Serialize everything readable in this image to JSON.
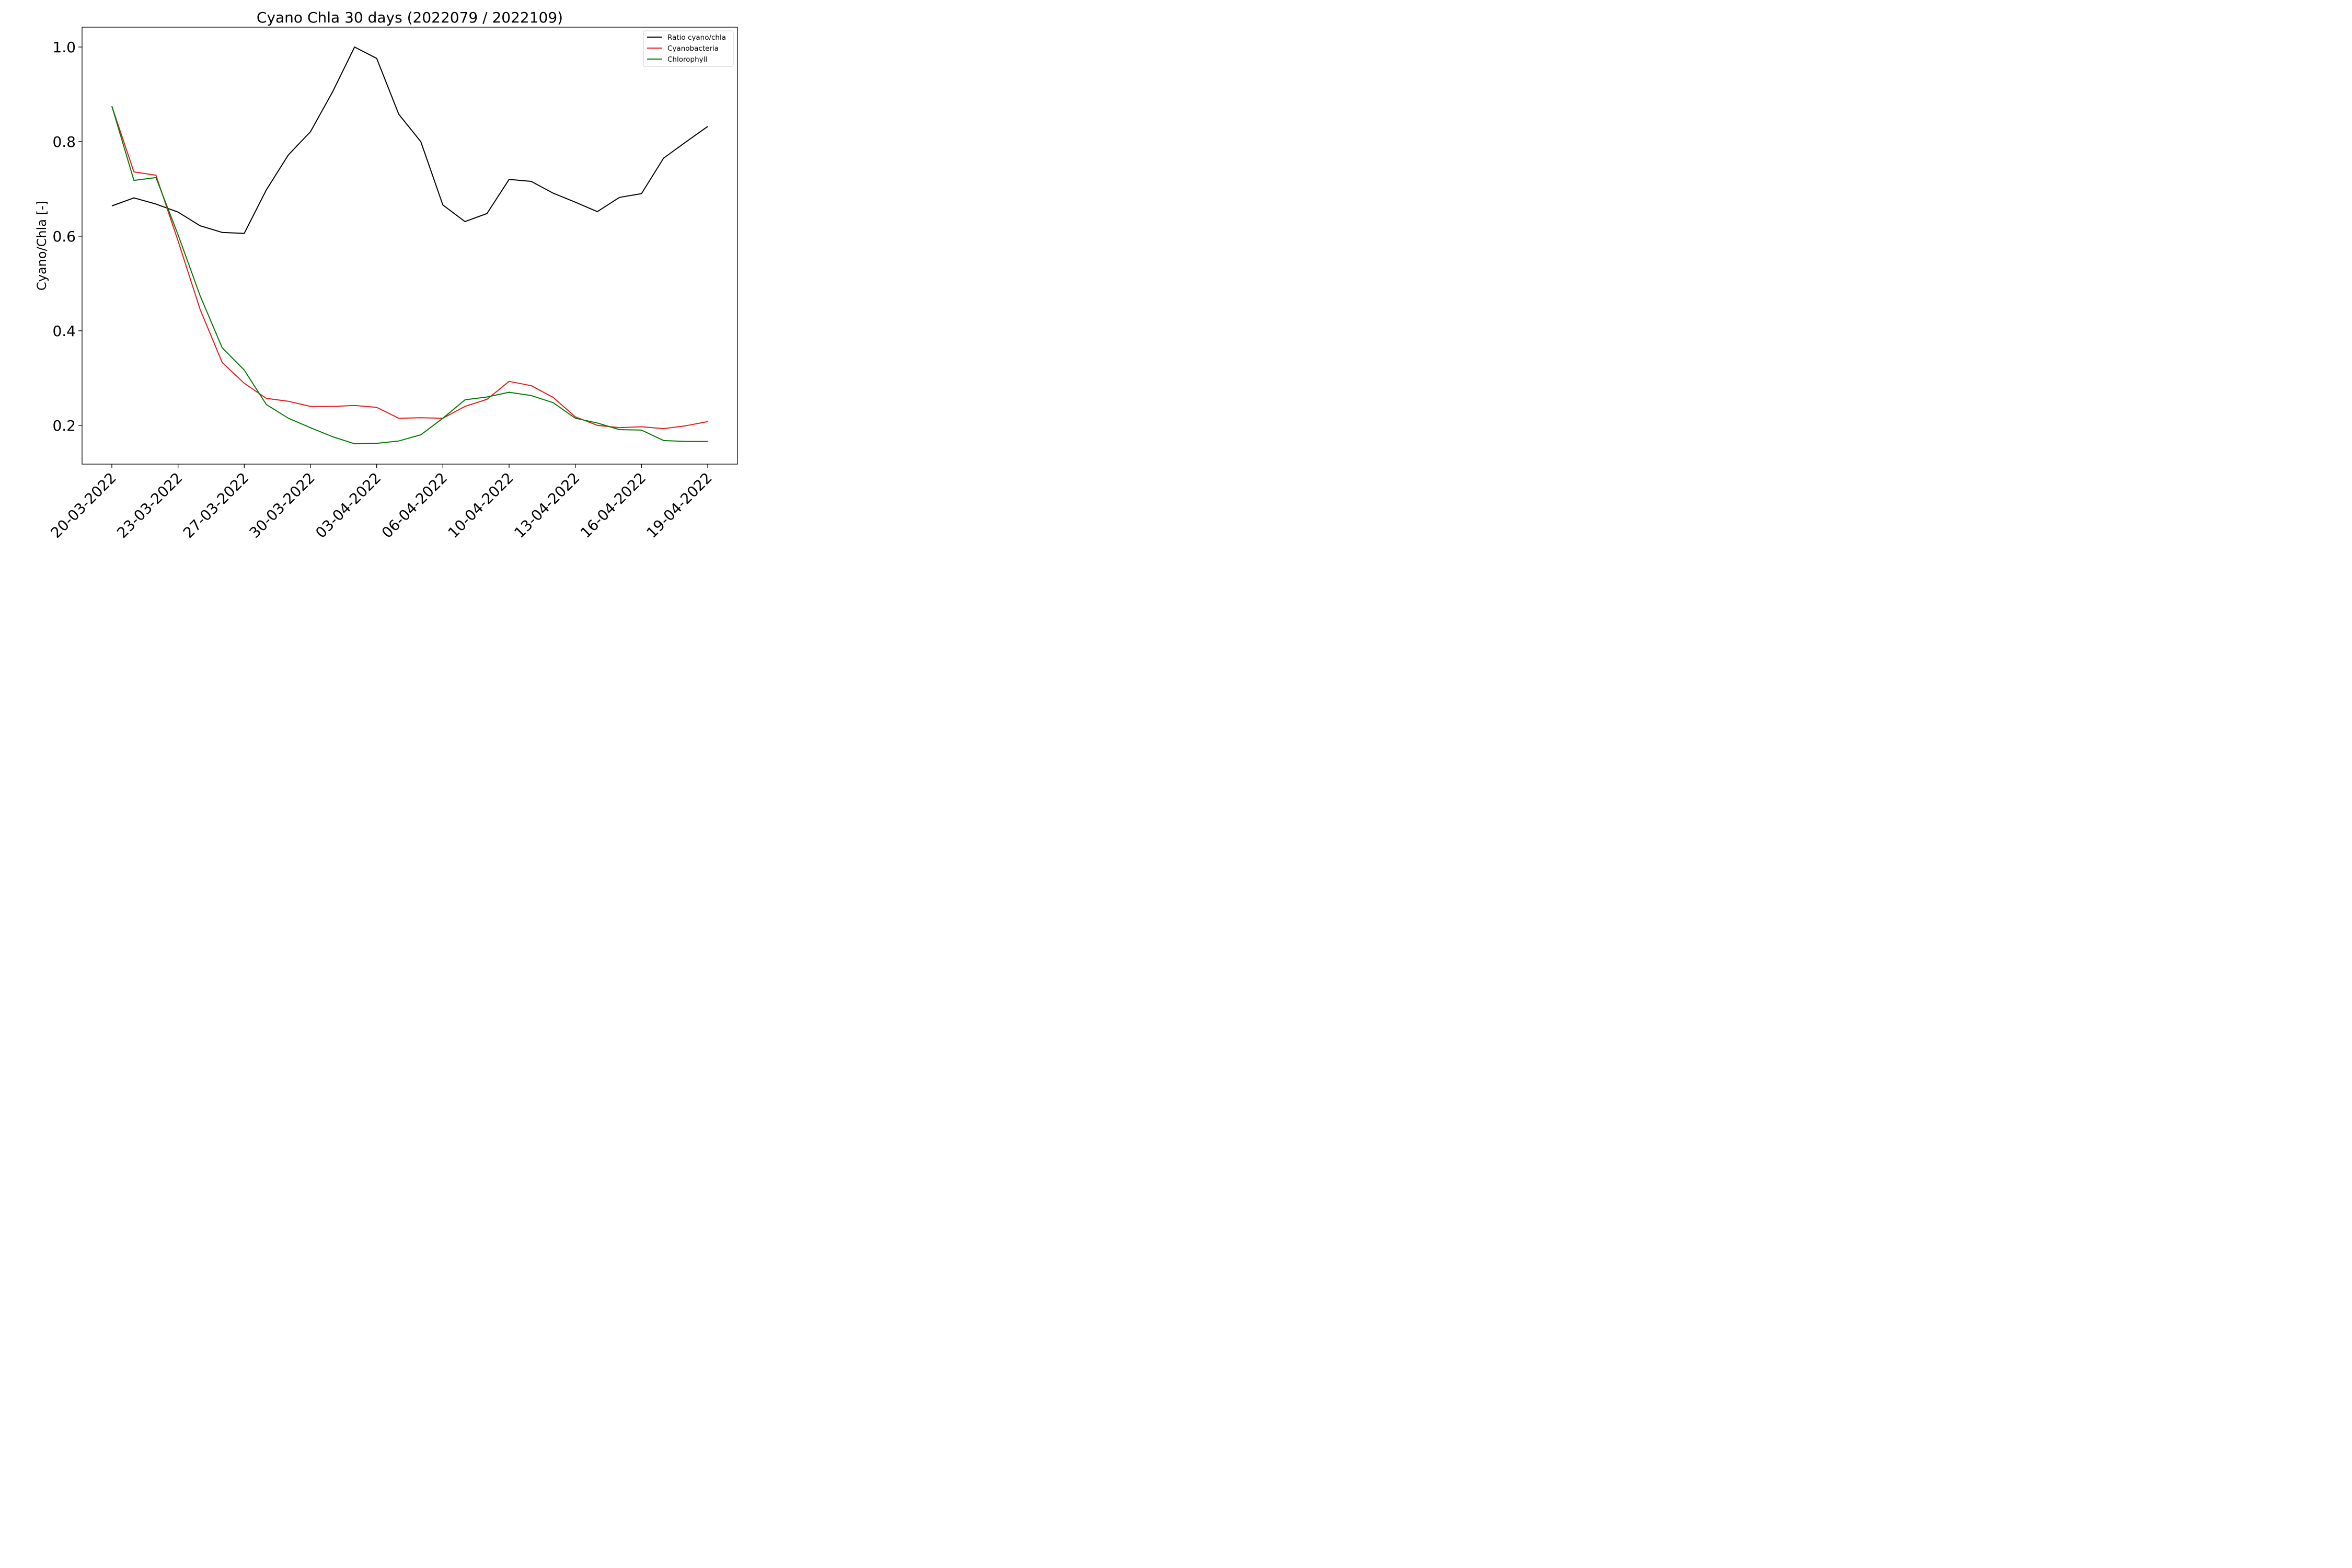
{
  "chart_data": {
    "type": "line",
    "title": "Cyano Chla 30 days (2022079 / 2022109)",
    "xlabel": "",
    "ylabel": "Cyano/Chla [-]",
    "ylim": [
      0.118,
      1.042
    ],
    "yticks": [
      0.2,
      0.4,
      0.6,
      0.8,
      1.0
    ],
    "ytick_labels": [
      "0.2",
      "0.4",
      "0.6",
      "0.8",
      "1.0"
    ],
    "xtick_indices": [
      0,
      3,
      6,
      9,
      12,
      15,
      18,
      21,
      24,
      27
    ],
    "xtick_labels": [
      "20-03-2022",
      "23-03-2022",
      "27-03-2022",
      "30-03-2022",
      "03-04-2022",
      "06-04-2022",
      "10-04-2022",
      "13-04-2022",
      "16-04-2022",
      "19-04-2022"
    ],
    "grid": false,
    "legend_position": "top-right",
    "series": [
      {
        "name": "Ratio cyano/chla",
        "color": "#000000",
        "values": [
          0.664,
          0.681,
          0.668,
          0.651,
          0.622,
          0.608,
          0.606,
          0.698,
          0.772,
          0.821,
          0.905,
          1.0,
          0.976,
          0.858,
          0.8,
          0.666,
          0.631,
          0.648,
          0.72,
          0.716,
          0.691,
          0.672,
          0.652,
          0.682,
          0.69,
          0.765,
          0.799,
          0.832
        ]
      },
      {
        "name": "Cyanobacteria",
        "color": "#e41a1c",
        "values": [
          0.875,
          0.736,
          0.729,
          0.59,
          0.445,
          0.333,
          0.289,
          0.257,
          0.251,
          0.24,
          0.24,
          0.242,
          0.238,
          0.215,
          0.216,
          0.215,
          0.24,
          0.255,
          0.293,
          0.284,
          0.259,
          0.218,
          0.2,
          0.195,
          0.197,
          0.193,
          0.199,
          0.208
        ]
      },
      {
        "name": "Chlorophyll",
        "color": "#007a00",
        "values": [
          0.875,
          0.718,
          0.724,
          0.603,
          0.474,
          0.364,
          0.317,
          0.244,
          0.215,
          0.195,
          0.176,
          0.161,
          0.162,
          0.167,
          0.18,
          0.215,
          0.254,
          0.26,
          0.27,
          0.263,
          0.248,
          0.215,
          0.205,
          0.191,
          0.19,
          0.168,
          0.166,
          0.166
        ]
      }
    ]
  }
}
